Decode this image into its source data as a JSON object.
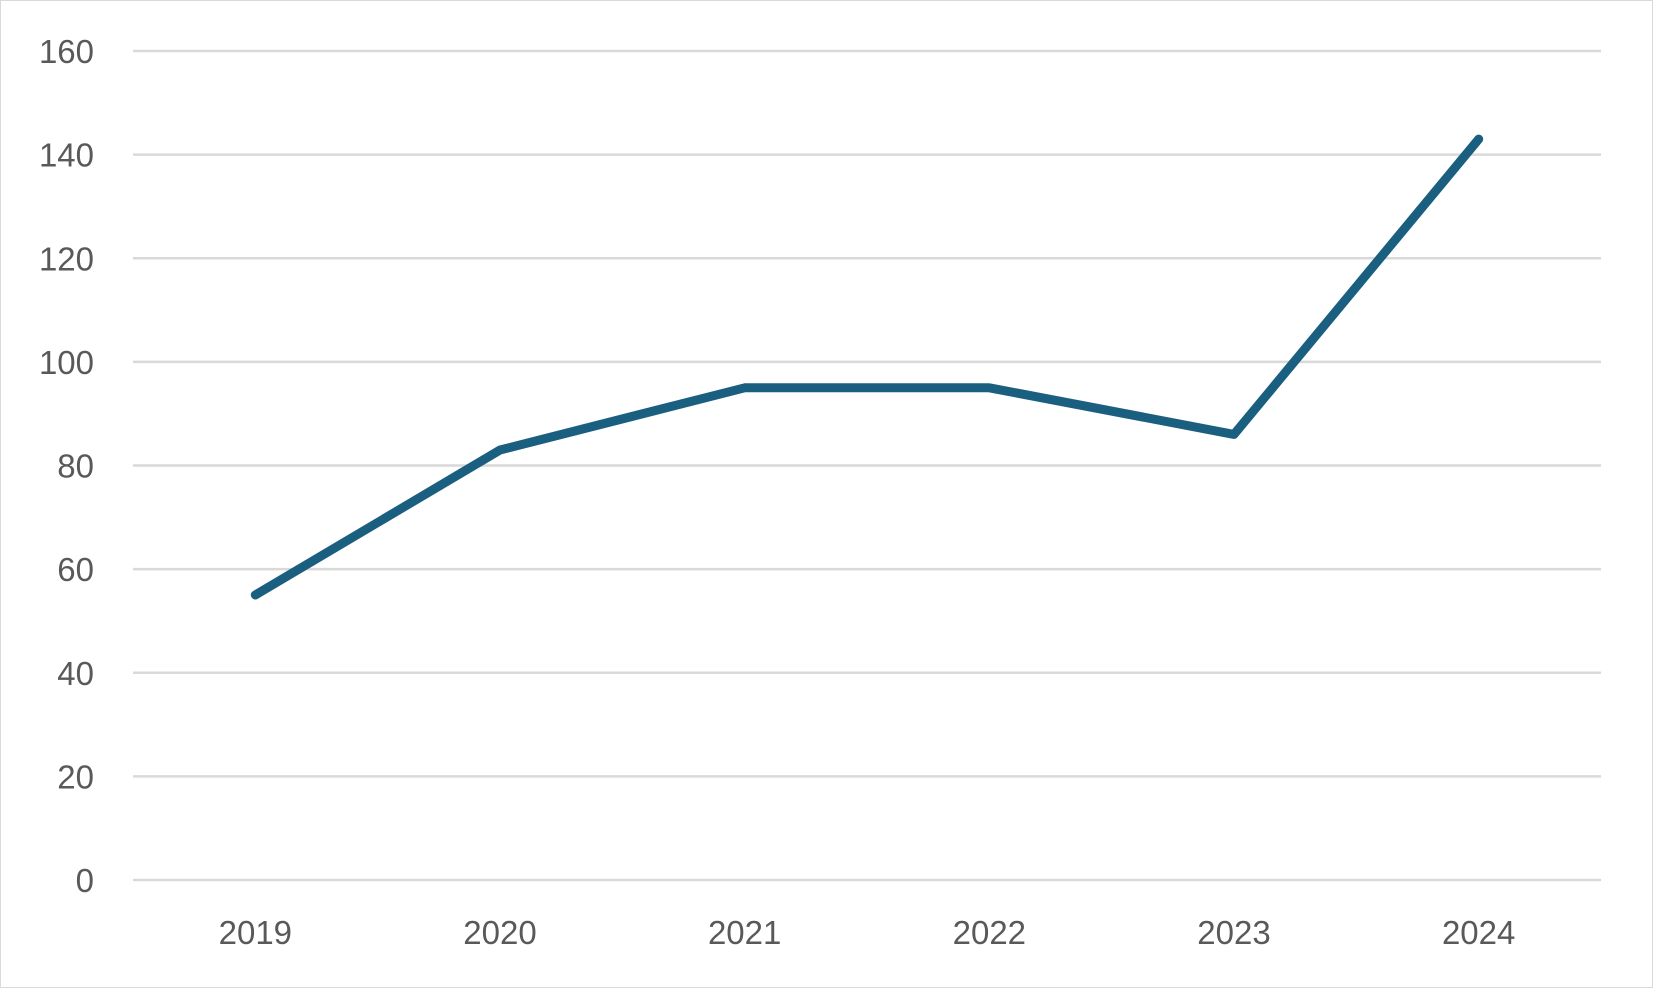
{
  "chart_data": {
    "type": "line",
    "title": "",
    "xlabel": "",
    "ylabel": "",
    "categories": [
      "2019",
      "2020",
      "2021",
      "2022",
      "2023",
      "2024"
    ],
    "series": [
      {
        "values": [
          55,
          83,
          95,
          95,
          86,
          143
        ],
        "color": "#1b5f80"
      }
    ],
    "ylim": [
      0,
      160
    ],
    "yticks": [
      "0",
      "20",
      "40",
      "60",
      "80",
      "100",
      "120",
      "140",
      "160"
    ],
    "grid": true,
    "legend": "none"
  }
}
